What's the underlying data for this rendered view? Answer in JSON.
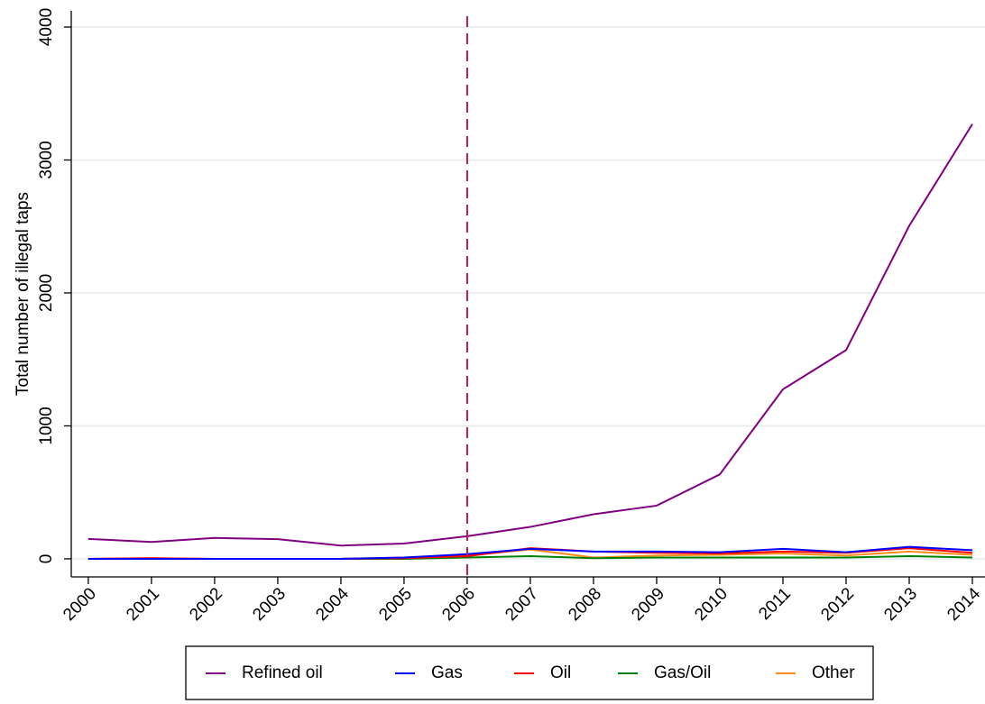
{
  "chart_data": {
    "type": "line",
    "y_label": "Total number of illegal taps",
    "x": [
      2000,
      2001,
      2002,
      2003,
      2004,
      2005,
      2006,
      2007,
      2008,
      2009,
      2010,
      2011,
      2012,
      2013,
      2014
    ],
    "series": [
      {
        "name": "Refined oil",
        "color": "#800080",
        "values": [
          150,
          127,
          157,
          148,
          100,
          115,
          170,
          240,
          335,
          400,
          635,
          1275,
          1570,
          2505,
          3270
        ]
      },
      {
        "name": "Gas",
        "color": "#0000ff",
        "values": [
          0,
          0,
          0,
          0,
          0,
          10,
          35,
          75,
          55,
          55,
          50,
          75,
          50,
          90,
          65
        ]
      },
      {
        "name": "Oil",
        "color": "#ff0000",
        "values": [
          0,
          5,
          0,
          0,
          0,
          5,
          20,
          80,
          55,
          45,
          40,
          55,
          45,
          80,
          45
        ]
      },
      {
        "name": "Gas/Oil",
        "color": "#008000",
        "values": [
          0,
          0,
          0,
          0,
          0,
          0,
          10,
          20,
          5,
          10,
          10,
          10,
          10,
          20,
          10
        ]
      },
      {
        "name": "Other",
        "color": "#ff8c1a",
        "values": [
          0,
          5,
          0,
          0,
          0,
          10,
          25,
          70,
          10,
          25,
          30,
          40,
          25,
          55,
          30
        ]
      }
    ],
    "vline": {
      "value": 2006,
      "color": "#b0204a"
    },
    "xlim": [
      1999.73,
      2014.2
    ],
    "xticks": [
      2000,
      2001,
      2002,
      2003,
      2004,
      2005,
      2006,
      2007,
      2008,
      2009,
      2010,
      2011,
      2012,
      2013,
      2014
    ],
    "ylim": [
      -136,
      4122
    ],
    "yticks": [
      0,
      1000,
      2000,
      3000,
      4000
    ],
    "grid": true,
    "legend": "bottom"
  }
}
